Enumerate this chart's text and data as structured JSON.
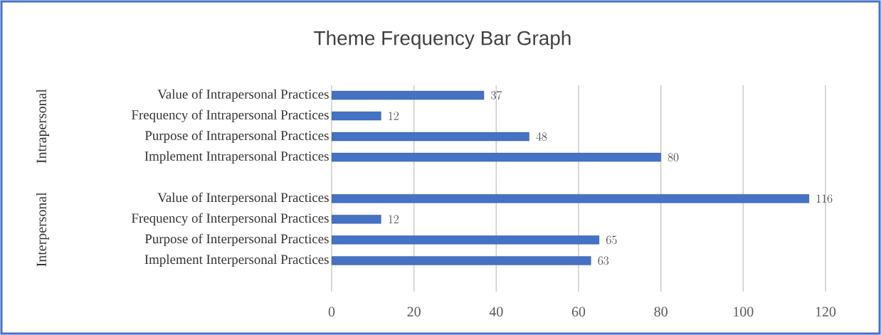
{
  "chart_data": {
    "type": "bar",
    "orientation": "horizontal",
    "title": "Theme Frequency Bar Graph",
    "categories": [
      "Value of Intrapersonal Practices",
      "Frequency of Intrapersonal Practices",
      "Purpose of Intrapersonal Practices",
      "Implement Intrapersonal Practices",
      null,
      "Value of Interpersonal Practices",
      "Frequency of Interpersonal Practices",
      "Purpose of Interpersonal Practices",
      "Implement Interpersonal Practices"
    ],
    "values": [
      37,
      12,
      48,
      80,
      null,
      116,
      12,
      65,
      63
    ],
    "color": "#4472c4",
    "annotations": [
      "Intrapersonal",
      "Interpersonal"
    ],
    "xlim": [
      0,
      120
    ],
    "xticks": [
      0,
      20,
      40,
      60,
      80,
      100,
      120
    ],
    "data_labels": true,
    "grid": "x"
  }
}
